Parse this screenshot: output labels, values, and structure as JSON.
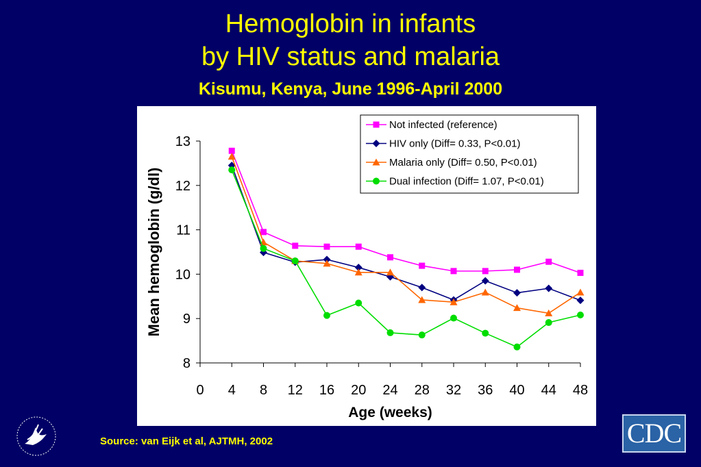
{
  "slide": {
    "title_line1": "Hemoglobin in infants",
    "title_line2": "by HIV status and malaria",
    "subtitle": "Kisumu, Kenya, June 1996-April 2000",
    "source": "Source: van Eijk et al, AJTMH, 2002",
    "cdc_logo_text": "CDC",
    "hhs_logo_icon": "hhs-eagle-seal-icon"
  },
  "colors": {
    "background": "#000066",
    "title": "#ffff00",
    "not_infected": "#ff00ff",
    "hiv_only": "#000080",
    "malaria_only": "#ff6600",
    "dual_infection": "#00dd00"
  },
  "chart_data": {
    "type": "line",
    "xlabel": "Age (weeks)",
    "ylabel": "Mean hemoglobin (g/dl)",
    "xlim": [
      0,
      48
    ],
    "ylim": [
      8,
      13
    ],
    "xticks": [
      "0",
      "4",
      "8",
      "12",
      "16",
      "20",
      "24",
      "28",
      "32",
      "36",
      "40",
      "44",
      "48"
    ],
    "yticks": [
      "8",
      "9",
      "10",
      "11",
      "12",
      "13"
    ],
    "x": [
      4,
      8,
      12,
      16,
      20,
      24,
      28,
      32,
      36,
      40,
      44,
      48
    ],
    "legend_position": "top-right",
    "series": [
      {
        "name": "Not infected (reference)",
        "marker": "square",
        "color": "#ff00ff",
        "values": [
          12.78,
          10.95,
          10.64,
          10.62,
          10.62,
          10.38,
          10.19,
          10.07,
          10.07,
          10.1,
          10.28,
          10.03
        ]
      },
      {
        "name": "HIV only (Diff= 0.33, P<0.01)",
        "marker": "diamond",
        "color": "#000080",
        "values": [
          12.45,
          10.49,
          10.27,
          10.33,
          10.15,
          9.94,
          9.7,
          9.42,
          9.85,
          9.58,
          9.68,
          9.41
        ]
      },
      {
        "name": "Malaria only (Diff= 0.50, P<0.01)",
        "marker": "triangle",
        "color": "#ff6600",
        "values": [
          12.65,
          10.72,
          10.3,
          10.24,
          10.04,
          10.04,
          9.42,
          9.37,
          9.59,
          9.24,
          9.12,
          9.59
        ]
      },
      {
        "name": "Dual infection (Diff= 1.07, P<0.01)",
        "marker": "circle",
        "color": "#00dd00",
        "values": [
          12.35,
          10.58,
          10.3,
          9.07,
          9.35,
          8.68,
          8.63,
          9.01,
          8.67,
          8.36,
          8.91,
          9.08
        ]
      }
    ]
  }
}
